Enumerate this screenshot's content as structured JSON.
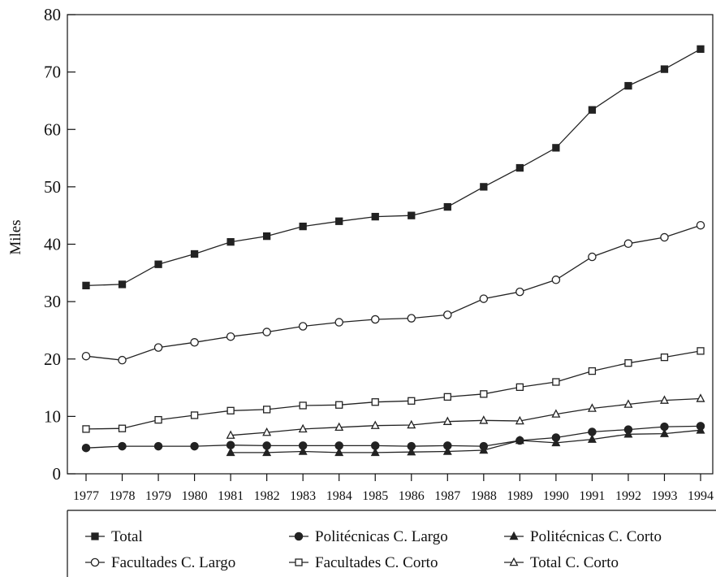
{
  "chart_data": {
    "type": "line",
    "title": "",
    "xlabel": "",
    "ylabel": "Miles",
    "ylim": [
      0,
      80
    ],
    "yticks": [
      "0",
      "10",
      "20",
      "30",
      "40",
      "50",
      "60",
      "70",
      "80"
    ],
    "x": [
      "1977",
      "1978",
      "1979",
      "1980",
      "1981",
      "1982",
      "1983",
      "1984",
      "1985",
      "1986",
      "1987",
      "1988",
      "1989",
      "1990",
      "1991",
      "1992",
      "1993",
      "1994"
    ],
    "grid": false,
    "legend_position": "bottom",
    "series": [
      {
        "name": "Total",
        "marker": "square",
        "filled": true,
        "values": [
          32.8,
          33.0,
          36.5,
          38.3,
          40.4,
          41.4,
          43.1,
          44.0,
          44.8,
          45.0,
          46.5,
          50.0,
          53.3,
          56.8,
          63.4,
          67.6,
          70.5,
          74.0
        ]
      },
      {
        "name": "Politécnicas C. Largo",
        "marker": "circle",
        "filled": true,
        "values": [
          4.5,
          4.8,
          4.8,
          4.8,
          5.0,
          4.9,
          4.9,
          4.9,
          4.9,
          4.8,
          4.9,
          4.8,
          5.8,
          6.3,
          7.3,
          7.7,
          8.2,
          8.3
        ]
      },
      {
        "name": "Politécnicas C. Corto",
        "marker": "triangle",
        "filled": true,
        "values": [
          null,
          null,
          null,
          null,
          3.7,
          3.7,
          3.9,
          3.7,
          3.7,
          3.8,
          3.9,
          4.1,
          5.8,
          5.4,
          6.0,
          6.9,
          7.0,
          7.6
        ]
      },
      {
        "name": "Facultades C. Largo",
        "marker": "circle",
        "filled": false,
        "values": [
          20.5,
          19.8,
          22.0,
          22.9,
          23.9,
          24.7,
          25.7,
          26.4,
          26.9,
          27.1,
          27.7,
          30.5,
          31.7,
          33.8,
          37.8,
          40.1,
          41.2,
          43.3
        ]
      },
      {
        "name": "Facultades C. Corto",
        "marker": "square",
        "filled": false,
        "values": [
          7.8,
          7.9,
          9.4,
          10.2,
          11.0,
          11.2,
          11.9,
          12.0,
          12.5,
          12.7,
          13.4,
          13.9,
          15.1,
          16.0,
          17.9,
          19.3,
          20.3,
          21.4
        ]
      },
      {
        "name": "Total C. Corto",
        "marker": "triangle",
        "filled": false,
        "values": [
          null,
          null,
          null,
          null,
          6.7,
          7.2,
          7.8,
          8.1,
          8.4,
          8.5,
          9.1,
          9.3,
          9.2,
          10.4,
          11.4,
          12.1,
          12.8,
          13.1
        ]
      }
    ]
  }
}
